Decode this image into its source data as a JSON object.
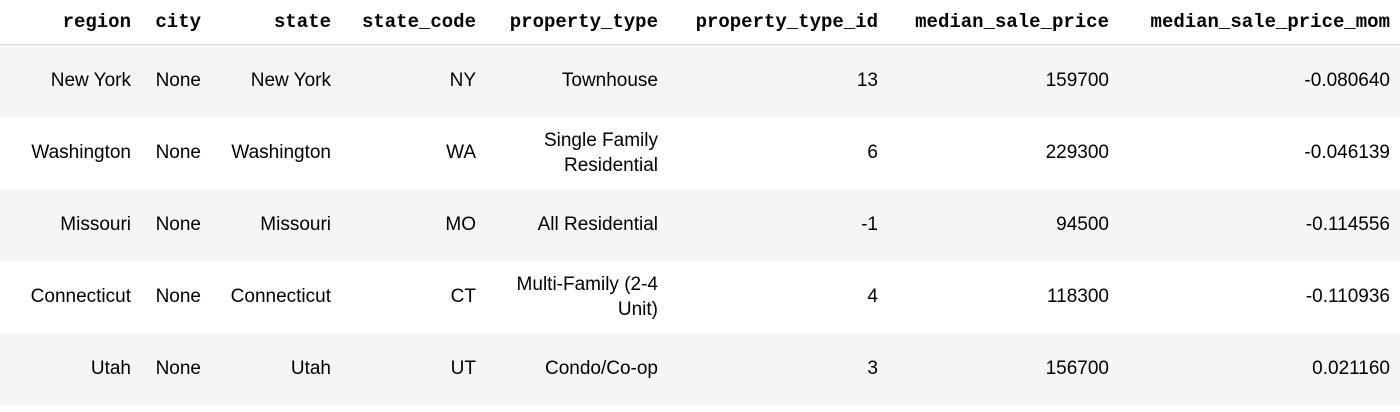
{
  "table": {
    "columns": [
      "region",
      "city",
      "state",
      "state_code",
      "property_type",
      "property_type_id",
      "median_sale_price",
      "median_sale_price_mom"
    ],
    "rows": [
      [
        "New York",
        "None",
        "New York",
        "NY",
        "Townhouse",
        "13",
        "159700",
        "-0.080640"
      ],
      [
        "Washington",
        "None",
        "Washington",
        "WA",
        "Single Family Residential",
        "6",
        "229300",
        "-0.046139"
      ],
      [
        "Missouri",
        "None",
        "Missouri",
        "MO",
        "All Residential",
        "-1",
        "94500",
        "-0.114556"
      ],
      [
        "Connecticut",
        "None",
        "Connecticut",
        "CT",
        "Multi-Family (2-4 Unit)",
        "4",
        "118300",
        "-0.110936"
      ],
      [
        "Utah",
        "None",
        "Utah",
        "UT",
        "Condo/Co-op",
        "3",
        "156700",
        "0.021160"
      ]
    ]
  }
}
